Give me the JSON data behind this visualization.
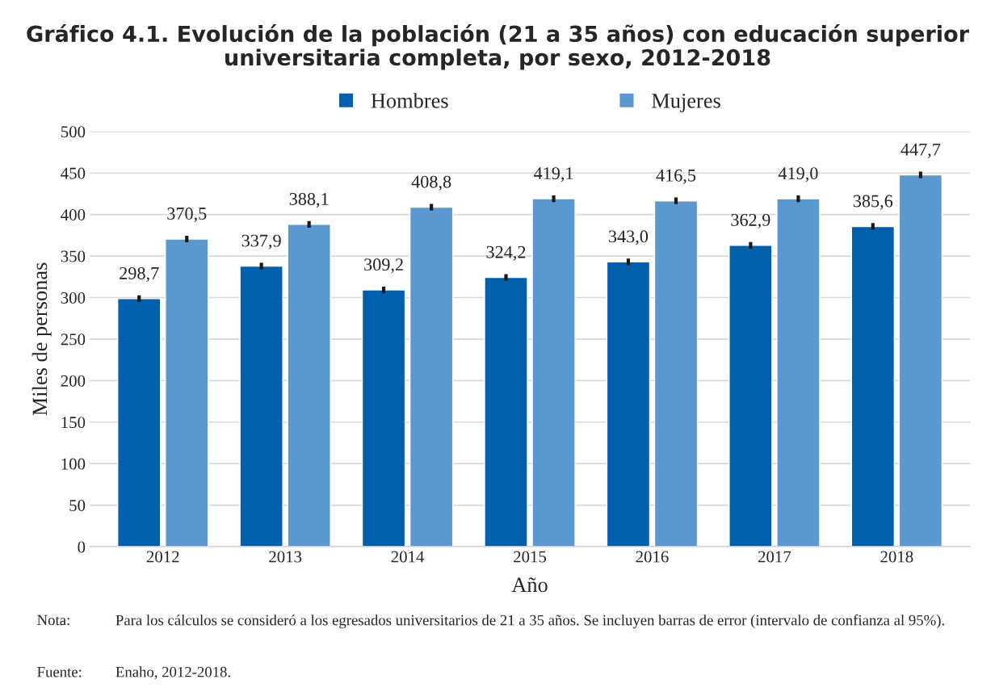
{
  "chart_data": {
    "type": "bar",
    "title": "Gráfico 4.1. Evolución de la población (21 a 35 años) con educación superior\nuniversitaria completa, por sexo, 2012-2018",
    "xlabel": "Año",
    "ylabel": "Miles de personas",
    "categories": [
      "2012",
      "2013",
      "2014",
      "2015",
      "2016",
      "2017",
      "2018"
    ],
    "series": [
      {
        "name": "Hombres",
        "color": "#025fac",
        "values": [
          298.7,
          337.9,
          309.2,
          324.2,
          343.0,
          362.9,
          385.6
        ],
        "errors": [
          4,
          4,
          4,
          4,
          4,
          4,
          4
        ],
        "value_labels": [
          "298,7",
          "337,9",
          "309,2",
          "324,2",
          "343,0",
          "362,9",
          "385,6"
        ]
      },
      {
        "name": "Mujeres",
        "color": "#5b98cf",
        "values": [
          370.5,
          388.1,
          408.8,
          419.1,
          416.5,
          419.0,
          447.7
        ],
        "errors": [
          4,
          4,
          4,
          4,
          4,
          4,
          4
        ],
        "value_labels": [
          "370,5",
          "388,1",
          "408,8",
          "419,1",
          "416,5",
          "419,0",
          "447,7"
        ]
      }
    ],
    "ylim": [
      0,
      500
    ],
    "yticks": [
      0,
      50,
      100,
      150,
      200,
      250,
      300,
      350,
      400,
      450,
      500
    ],
    "grid": "y",
    "legend": "top",
    "annotations": [
      "Nota:\tPara los cálculos se consideró a los egresados universitarios de 21 a 35 años. Se incluyen barras de error (intervalo de confianza al 95%).",
      "Fuente:\tEnaho, 2012-2018."
    ]
  }
}
